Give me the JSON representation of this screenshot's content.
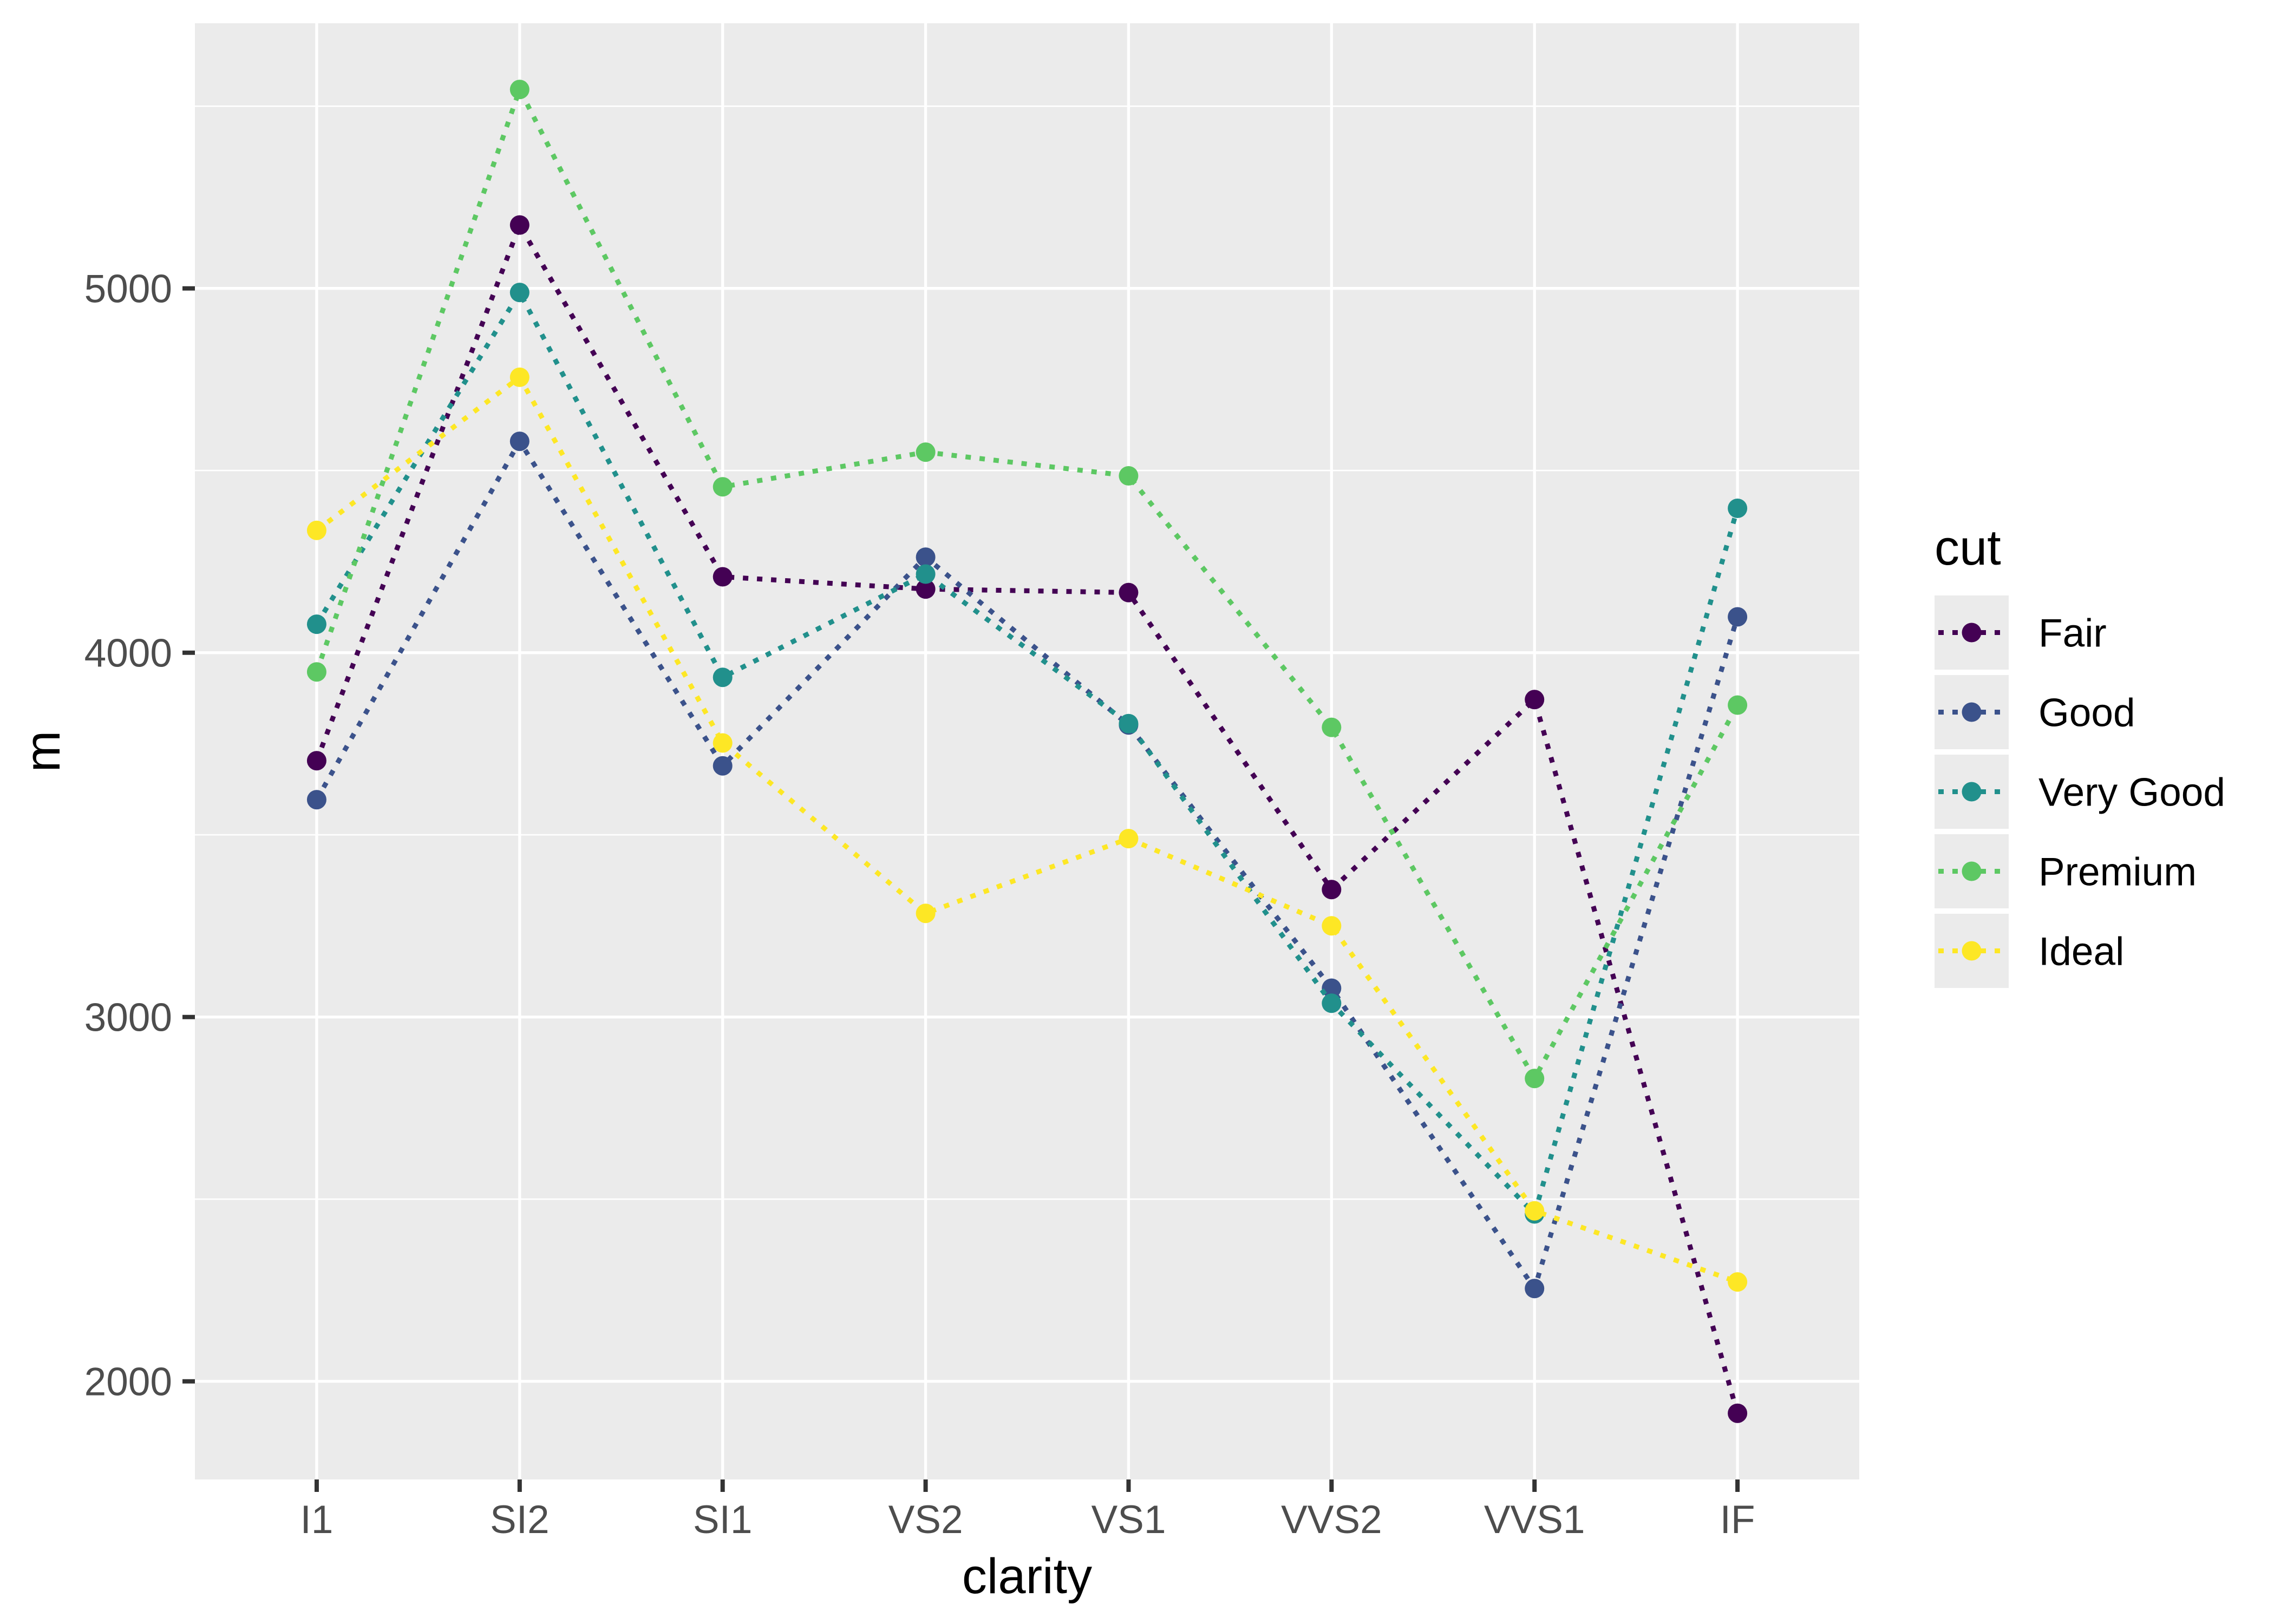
{
  "chart_data": {
    "type": "line",
    "title": "",
    "xlabel": "clarity",
    "ylabel": "m",
    "categories": [
      "I1",
      "SI2",
      "SI1",
      "VS2",
      "VS1",
      "VVS2",
      "VVS1",
      "IF"
    ],
    "series": [
      {
        "name": "Fair",
        "color": "#440154",
        "values": [
          3703.53,
          5173.92,
          4208.28,
          4174.72,
          4165.14,
          3349.77,
          3871.35,
          1912.33
        ]
      },
      {
        "name": "Good",
        "color": "#3B528B",
        "values": [
          3596.64,
          4580.26,
          3689.53,
          4262.24,
          3801.45,
          3079.11,
          2254.77,
          4098.32
        ]
      },
      {
        "name": "Very Good",
        "color": "#21908C",
        "values": [
          4078.23,
          4988.69,
          3932.39,
          4215.76,
          3805.35,
          3037.77,
          2459.44,
          4396.22
        ]
      },
      {
        "name": "Premium",
        "color": "#5DC863",
        "values": [
          3947.33,
          5545.94,
          4455.27,
          4550.33,
          4485.46,
          3795.12,
          2831.21,
          3856.14
        ]
      },
      {
        "name": "Ideal",
        "color": "#FDE725",
        "values": [
          4335.73,
          4755.95,
          3752.12,
          3284.55,
          3489.74,
          3250.29,
          2468.13,
          2272.91
        ]
      }
    ],
    "y_ticks": [
      2000,
      3000,
      4000,
      5000
    ],
    "y_minor_ticks": [
      2500,
      3500,
      4500,
      5500
    ],
    "ylim": [
      1730.65,
      5727.62
    ],
    "line_style": "dotted",
    "grid": true,
    "legend": {
      "title": "cut",
      "position": "right"
    },
    "style": {
      "panel_bg": "#EBEBEB",
      "grid_color": "#FFFFFF",
      "tick_color": "#333333",
      "tick_text_color": "#4D4D4D",
      "title_text_color": "#000000"
    }
  }
}
